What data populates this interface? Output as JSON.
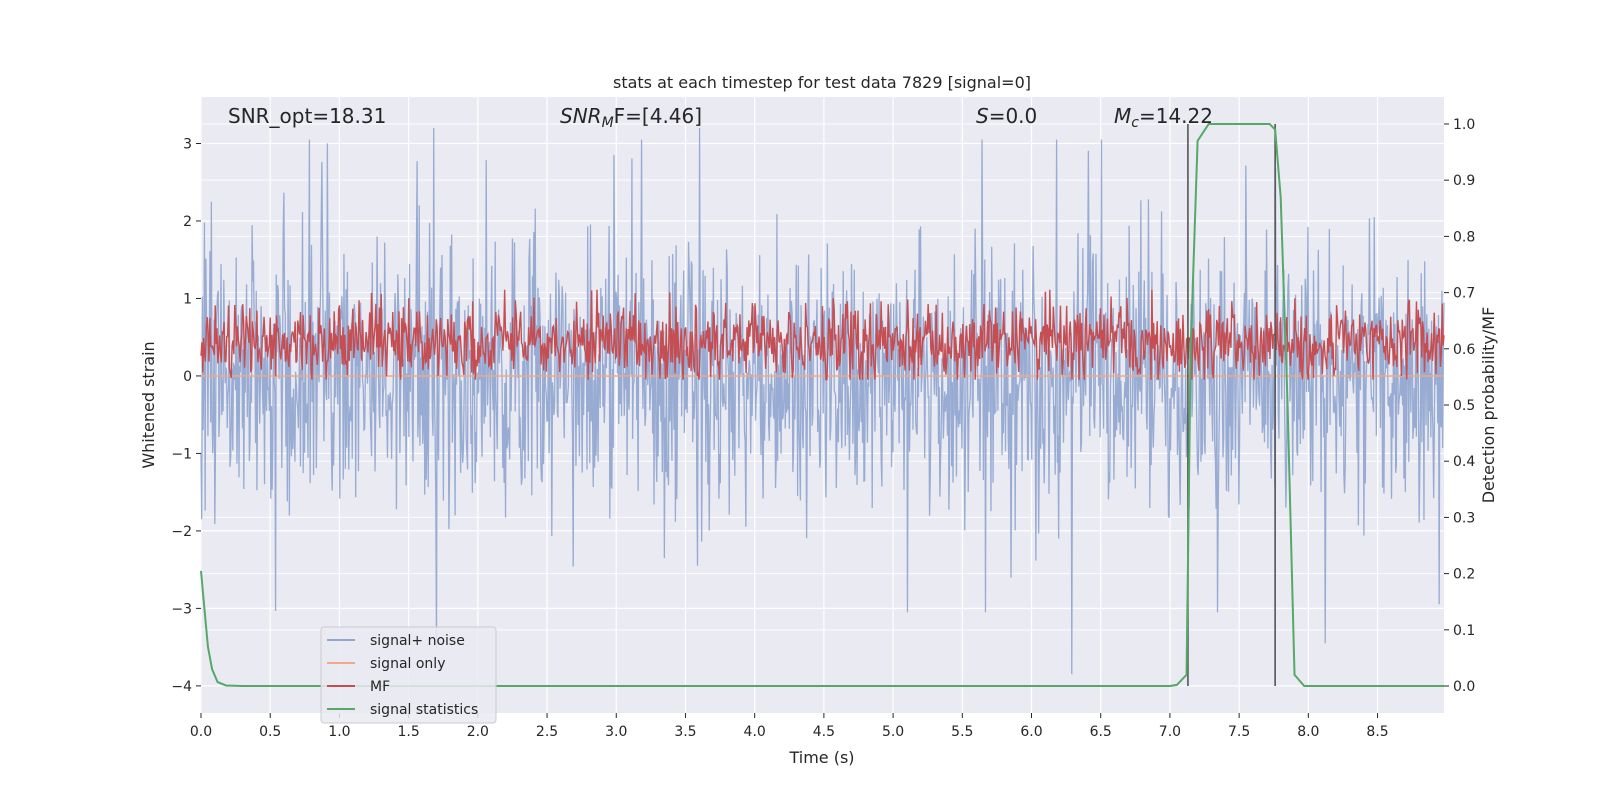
{
  "chart_data": {
    "type": "line",
    "title": "stats at each timestep for test data 7829 [signal=0]",
    "xlabel": "Time (s)",
    "ylabel": "Whitened strain",
    "y2label": "Detection probability/MF",
    "xlim": [
      0.0,
      8.98
    ],
    "ylim": [
      -4.35,
      3.6
    ],
    "y2lim": [
      -0.048,
      1.048
    ],
    "xticks": [
      "0.0",
      "0.5",
      "1.0",
      "1.5",
      "2.0",
      "2.5",
      "3.0",
      "3.5",
      "4.0",
      "4.5",
      "5.0",
      "5.5",
      "6.0",
      "6.5",
      "7.0",
      "7.5",
      "8.0",
      "8.5"
    ],
    "yticks": [
      "−4",
      "−3",
      "−2",
      "−1",
      "0",
      "1",
      "2",
      "3"
    ],
    "y2ticks": [
      "0.0",
      "0.1",
      "0.2",
      "0.3",
      "0.4",
      "0.5",
      "0.6",
      "0.7",
      "0.8",
      "0.9",
      "1.0"
    ],
    "grid": true,
    "legend_position": "lower-left",
    "annotations": {
      "snr_opt": "SNR_opt=18.31",
      "snr_mf_main": "SNR",
      "snr_mf_sub": "M",
      "snr_mf_rest": "F=[4.46]",
      "s_main": "S",
      "s_rest": "=0.0",
      "mc_main": "M",
      "mc_sub": "c",
      "mc_rest": "=14.22"
    },
    "vlines": [
      7.13,
      7.76
    ],
    "series": [
      {
        "name": "signal+ noise",
        "color": "#92a8d1",
        "envelope_upper": [
          1.4,
          3.0
        ],
        "envelope_lower": [
          -1.5,
          -3.0
        ],
        "extremes": [
          [
            1.68,
            3.2
          ],
          [
            6.29,
            -3.85
          ],
          [
            1.7,
            -3.5
          ],
          [
            8.12,
            -3.45
          ],
          [
            3.6,
            3.2
          ]
        ]
      },
      {
        "name": "signal only",
        "color": "#f0a888",
        "values_const": 0.0
      },
      {
        "name": "MF",
        "color": "#c44e52",
        "band_y2": [
          0.55,
          0.67
        ]
      },
      {
        "name": "signal statistics",
        "color": "#55a868",
        "x": [
          0.0,
          0.02,
          0.05,
          0.08,
          0.12,
          0.18,
          0.3,
          0.8,
          2.0,
          4.0,
          6.0,
          7.0,
          7.05,
          7.12,
          7.15,
          7.2,
          7.28,
          7.35,
          7.5,
          7.65,
          7.72,
          7.76,
          7.8,
          7.85,
          7.9,
          7.97,
          8.5,
          8.98
        ],
        "y": [
          0.205,
          0.15,
          0.07,
          0.03,
          0.007,
          0.001,
          0.0,
          0.0,
          0.0,
          0.0,
          0.0,
          0.0,
          0.002,
          0.02,
          0.6,
          0.97,
          1.0,
          1.0,
          1.0,
          1.0,
          1.0,
          0.99,
          0.87,
          0.5,
          0.02,
          0.0,
          0.0,
          0.0
        ]
      }
    ]
  }
}
